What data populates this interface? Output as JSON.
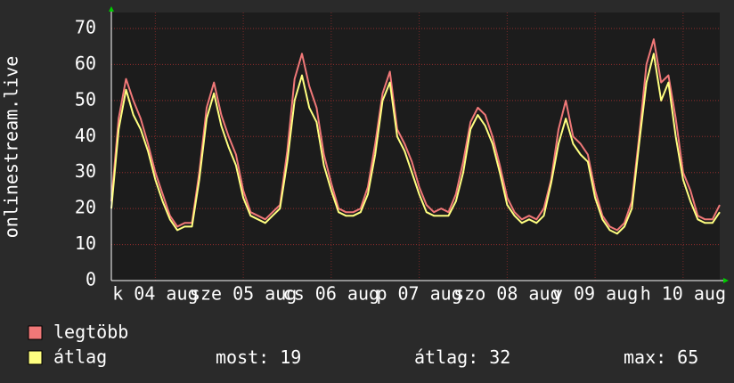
{
  "chart_data": {
    "type": "line",
    "y_label": "onlinestream.live",
    "categories": [
      null,
      null,
      null,
      null,
      null,
      null,
      "k 04 aug",
      null,
      null,
      null,
      null,
      null,
      null,
      null,
      null,
      null,
      null,
      null,
      "sze 05 aug",
      null,
      null,
      null,
      null,
      null,
      null,
      null,
      null,
      null,
      null,
      null,
      "cs 06 aug",
      null,
      null,
      null,
      null,
      null,
      null,
      null,
      null,
      null,
      null,
      null,
      "p 07 aug",
      null,
      null,
      null,
      null,
      null,
      null,
      null,
      null,
      null,
      null,
      null,
      "szo 08 aug",
      null,
      null,
      null,
      null,
      null,
      null,
      null,
      null,
      null,
      null,
      null,
      "v 09 aug",
      null,
      null,
      null,
      null,
      null,
      null,
      null,
      null,
      null,
      null,
      null,
      "h 10 aug",
      null,
      null,
      null,
      null,
      null
    ],
    "series": [
      {
        "name": "legtöbb",
        "color": "#f07878",
        "values": [
          22,
          45,
          56,
          50,
          45,
          38,
          30,
          24,
          18,
          15,
          16,
          16,
          30,
          48,
          55,
          46,
          40,
          35,
          25,
          19,
          18,
          17,
          19,
          21,
          36,
          56,
          63,
          54,
          48,
          35,
          27,
          20,
          19,
          19,
          20,
          26,
          38,
          52,
          58,
          42,
          38,
          33,
          26,
          21,
          19,
          20,
          19,
          24,
          33,
          44,
          48,
          46,
          40,
          32,
          23,
          19,
          17,
          18,
          17,
          20,
          28,
          42,
          50,
          40,
          38,
          35,
          25,
          18,
          15,
          14,
          16,
          22,
          40,
          60,
          67,
          55,
          57,
          45,
          30,
          25,
          18,
          17,
          17,
          21
        ]
      },
      {
        "name": "átlag",
        "color": "#ffff80",
        "values": [
          20,
          42,
          53,
          46,
          42,
          36,
          28,
          22,
          17,
          14,
          15,
          15,
          28,
          45,
          52,
          43,
          37,
          32,
          23,
          18,
          17,
          16,
          18,
          20,
          33,
          50,
          57,
          48,
          44,
          32,
          25,
          19,
          18,
          18,
          19,
          24,
          35,
          50,
          55,
          40,
          36,
          30,
          24,
          19,
          18,
          18,
          18,
          22,
          30,
          42,
          46,
          43,
          38,
          30,
          21,
          18,
          16,
          17,
          16,
          18,
          27,
          38,
          45,
          38,
          35,
          33,
          23,
          17,
          14,
          13,
          15,
          20,
          38,
          55,
          63,
          50,
          55,
          40,
          28,
          22,
          17,
          16,
          16,
          19
        ]
      }
    ],
    "ylim": [
      0,
      70
    ],
    "yticks": [
      0,
      10,
      20,
      30,
      40,
      50,
      60,
      70
    ],
    "grid": true,
    "stats": [
      {
        "label": "most:",
        "value": 19
      },
      {
        "label": "átlag:",
        "value": 32
      },
      {
        "label": "max:",
        "value": 65
      }
    ]
  }
}
